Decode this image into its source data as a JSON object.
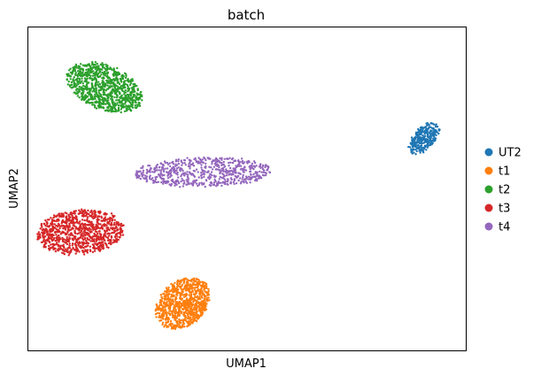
{
  "chart_data": {
    "type": "scatter",
    "title": "batch",
    "xlabel": "UMAP1",
    "ylabel": "UMAP2",
    "xlim": [
      0,
      10
    ],
    "ylim": [
      0,
      10
    ],
    "grid": false,
    "ticks_visible": false,
    "legend": {
      "placement": "right-outside",
      "entries": [
        "UT2",
        "t1",
        "t2",
        "t3",
        "t4"
      ]
    },
    "series": [
      {
        "name": "UT2",
        "color": "#1f77b4",
        "points": 300,
        "center": [
          9.05,
          6.55
        ],
        "spread": [
          0.26,
          0.53
        ],
        "rotation_deg": -28,
        "seed": 11
      },
      {
        "name": "t1",
        "color": "#ff7f0e",
        "points": 850,
        "center": [
          3.55,
          1.45
        ],
        "spread": [
          0.55,
          0.83
        ],
        "rotation_deg": -25,
        "seed": 23
      },
      {
        "name": "t2",
        "color": "#2ca02c",
        "points": 950,
        "center": [
          1.75,
          8.12
        ],
        "spread": [
          0.98,
          0.63
        ],
        "rotation_deg": -38,
        "seed": 37
      },
      {
        "name": "t3",
        "color": "#d62728",
        "points": 950,
        "center": [
          1.2,
          3.65
        ],
        "spread": [
          1.0,
          0.68
        ],
        "rotation_deg": 10,
        "seed": 51
      },
      {
        "name": "t4",
        "color": "#9467bd",
        "points": 650,
        "center": [
          4.02,
          5.5
        ],
        "spread": [
          1.55,
          0.45
        ],
        "rotation_deg": 2,
        "seed": 67
      }
    ]
  }
}
